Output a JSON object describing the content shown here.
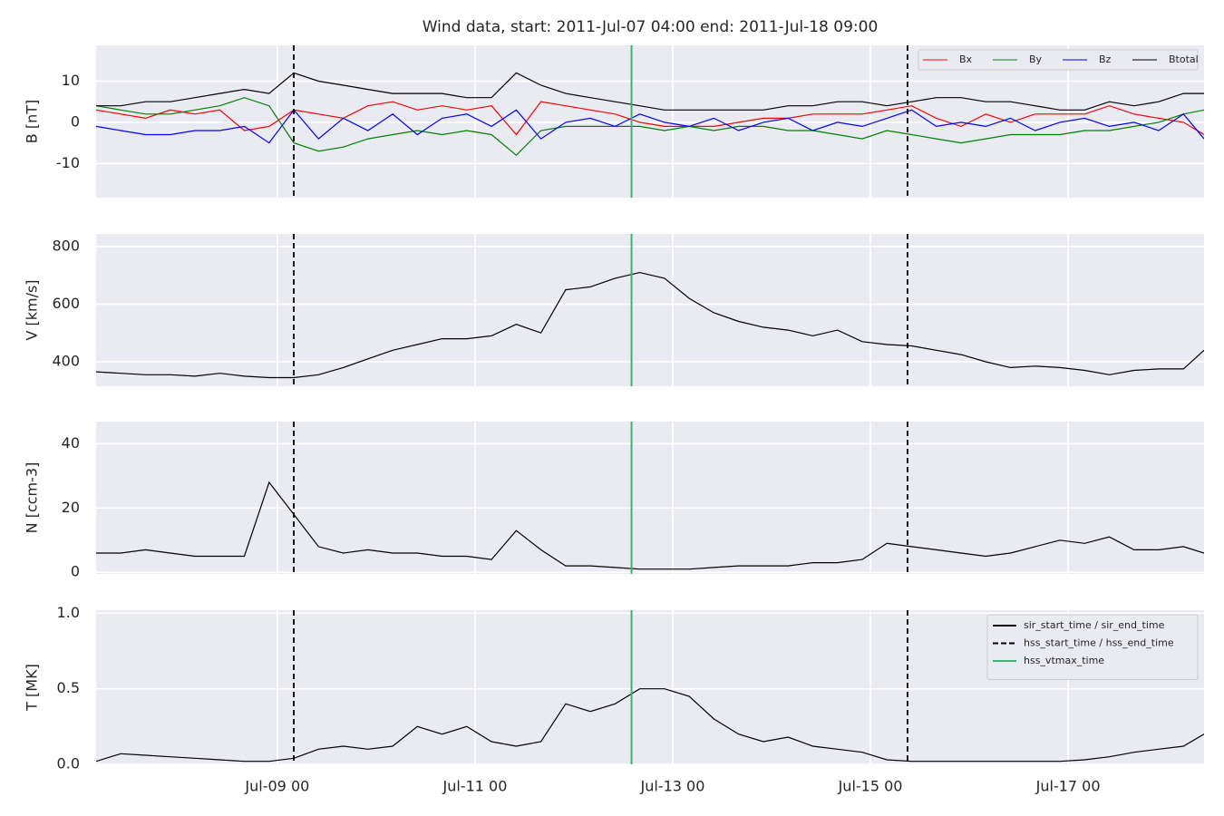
{
  "chart_data": [
    {
      "type": "line",
      "title": "Wind data, start: 2011-Jul-07 04:00  end: 2011-Jul-18 09:00",
      "y_label": "B [nT]",
      "x": [
        "Jul-07 04",
        "Jul-07 10",
        "Jul-07 16",
        "Jul-07 22",
        "Jul-08 04",
        "Jul-08 10",
        "Jul-08 16",
        "Jul-08 22",
        "Jul-09 04",
        "Jul-09 10",
        "Jul-09 16",
        "Jul-09 22",
        "Jul-10 04",
        "Jul-10 10",
        "Jul-10 16",
        "Jul-10 22",
        "Jul-11 04",
        "Jul-11 10",
        "Jul-11 16",
        "Jul-11 22",
        "Jul-12 04",
        "Jul-12 10",
        "Jul-12 16",
        "Jul-12 22",
        "Jul-13 04",
        "Jul-13 10",
        "Jul-13 16",
        "Jul-13 22",
        "Jul-14 04",
        "Jul-14 10",
        "Jul-14 16",
        "Jul-14 22",
        "Jul-15 04",
        "Jul-15 10",
        "Jul-15 16",
        "Jul-15 22",
        "Jul-16 04",
        "Jul-16 10",
        "Jul-16 16",
        "Jul-16 22",
        "Jul-17 04",
        "Jul-17 10",
        "Jul-17 16",
        "Jul-17 22",
        "Jul-18 04",
        "Jul-18 09"
      ],
      "series": [
        {
          "name": "Bx",
          "color": "#ff0000",
          "values": [
            3,
            2,
            1,
            3,
            2,
            3,
            -2,
            -1,
            3,
            2,
            1,
            4,
            5,
            3,
            4,
            3,
            4,
            -3,
            5,
            4,
            3,
            2,
            0,
            -1,
            -1,
            -1,
            0,
            1,
            1,
            2,
            2,
            2,
            3,
            4,
            1,
            -1,
            2,
            0,
            2,
            2,
            2,
            4,
            2,
            1,
            0,
            -3
          ]
        },
        {
          "name": "By",
          "color": "#008000",
          "values": [
            4,
            3,
            2,
            2,
            3,
            4,
            6,
            4,
            -5,
            -7,
            -6,
            -4,
            -3,
            -2,
            -3,
            -2,
            -3,
            -8,
            -2,
            -1,
            -1,
            -1,
            -1,
            -2,
            -1,
            -2,
            -1,
            -1,
            -2,
            -2,
            -3,
            -4,
            -2,
            -3,
            -4,
            -5,
            -4,
            -3,
            -3,
            -3,
            -2,
            -2,
            -1,
            0,
            2,
            3
          ]
        },
        {
          "name": "Bz",
          "color": "#0000ff",
          "values": [
            -1,
            -2,
            -3,
            -3,
            -2,
            -2,
            -1,
            -5,
            3,
            -4,
            1,
            -2,
            2,
            -3,
            1,
            2,
            -1,
            3,
            -4,
            0,
            1,
            -1,
            2,
            0,
            -1,
            1,
            -2,
            0,
            1,
            -2,
            0,
            -1,
            1,
            3,
            -1,
            0,
            -1,
            1,
            -2,
            0,
            1,
            -1,
            0,
            -2,
            2,
            -4
          ]
        },
        {
          "name": "Btotal",
          "color": "#000000",
          "values": [
            4,
            4,
            5,
            5,
            6,
            7,
            8,
            7,
            12,
            10,
            9,
            8,
            7,
            7,
            7,
            6,
            6,
            12,
            9,
            7,
            6,
            5,
            4,
            3,
            3,
            3,
            3,
            3,
            4,
            4,
            5,
            5,
            4,
            5,
            6,
            6,
            5,
            5,
            4,
            3,
            3,
            5,
            4,
            5,
            7,
            7
          ]
        }
      ],
      "xlim": [
        "Jul-07 04",
        "Jul-18 09"
      ],
      "xticks": [
        "Jul-09 00",
        "Jul-11 00",
        "Jul-13 00",
        "Jul-15 00",
        "Jul-17 00"
      ],
      "ylim": [
        -18.3,
        18.7
      ],
      "yticks": [
        -10,
        0,
        10
      ],
      "grid": true,
      "legend": "upper right"
    },
    {
      "type": "line",
      "y_label": "V [km/s]",
      "x": [
        "Jul-07 04",
        "Jul-07 10",
        "Jul-07 16",
        "Jul-07 22",
        "Jul-08 04",
        "Jul-08 10",
        "Jul-08 16",
        "Jul-08 22",
        "Jul-09 04",
        "Jul-09 10",
        "Jul-09 16",
        "Jul-09 22",
        "Jul-10 04",
        "Jul-10 10",
        "Jul-10 16",
        "Jul-10 22",
        "Jul-11 04",
        "Jul-11 10",
        "Jul-11 16",
        "Jul-11 22",
        "Jul-12 04",
        "Jul-12 10",
        "Jul-12 16",
        "Jul-12 22",
        "Jul-13 04",
        "Jul-13 10",
        "Jul-13 16",
        "Jul-13 22",
        "Jul-14 04",
        "Jul-14 10",
        "Jul-14 16",
        "Jul-14 22",
        "Jul-15 04",
        "Jul-15 10",
        "Jul-15 16",
        "Jul-15 22",
        "Jul-16 04",
        "Jul-16 10",
        "Jul-16 16",
        "Jul-16 22",
        "Jul-17 04",
        "Jul-17 10",
        "Jul-17 16",
        "Jul-17 22",
        "Jul-18 04",
        "Jul-18 09"
      ],
      "values": [
        365,
        360,
        355,
        355,
        350,
        360,
        350,
        345,
        345,
        355,
        380,
        410,
        440,
        460,
        480,
        480,
        490,
        530,
        500,
        650,
        660,
        690,
        710,
        690,
        620,
        570,
        540,
        520,
        510,
        490,
        510,
        470,
        460,
        455,
        440,
        425,
        400,
        380,
        385,
        380,
        370,
        355,
        370,
        375,
        375,
        440
      ],
      "color": "#000000",
      "xlim": [
        "Jul-07 04",
        "Jul-18 09"
      ],
      "xticks": [
        "Jul-09 00",
        "Jul-11 00",
        "Jul-13 00",
        "Jul-15 00",
        "Jul-17 00"
      ],
      "ylim": [
        315,
        844
      ],
      "yticks": [
        400,
        600,
        800
      ],
      "grid": true
    },
    {
      "type": "line",
      "y_label": "N [ccm-3]",
      "x": [
        "Jul-07 04",
        "Jul-07 10",
        "Jul-07 16",
        "Jul-07 22",
        "Jul-08 04",
        "Jul-08 10",
        "Jul-08 16",
        "Jul-08 22",
        "Jul-09 04",
        "Jul-09 10",
        "Jul-09 16",
        "Jul-09 22",
        "Jul-10 04",
        "Jul-10 10",
        "Jul-10 16",
        "Jul-10 22",
        "Jul-11 04",
        "Jul-11 10",
        "Jul-11 16",
        "Jul-11 22",
        "Jul-12 04",
        "Jul-12 10",
        "Jul-12 16",
        "Jul-12 22",
        "Jul-13 04",
        "Jul-13 10",
        "Jul-13 16",
        "Jul-13 22",
        "Jul-14 04",
        "Jul-14 10",
        "Jul-14 16",
        "Jul-14 22",
        "Jul-15 04",
        "Jul-15 10",
        "Jul-15 16",
        "Jul-15 22",
        "Jul-16 04",
        "Jul-16 10",
        "Jul-16 16",
        "Jul-16 22",
        "Jul-17 04",
        "Jul-17 10",
        "Jul-17 16",
        "Jul-17 22",
        "Jul-18 04",
        "Jul-18 09"
      ],
      "values": [
        6,
        6,
        7,
        6,
        5,
        5,
        5,
        28,
        18,
        8,
        6,
        7,
        6,
        6,
        5,
        5,
        4,
        13,
        7,
        2,
        2,
        1.5,
        1,
        1,
        1,
        1.5,
        2,
        2,
        2,
        3,
        3,
        4,
        9,
        8,
        7,
        6,
        5,
        6,
        8,
        10,
        9,
        11,
        7,
        7,
        8,
        6
      ],
      "color": "#000000",
      "xlim": [
        "Jul-07 04",
        "Jul-18 09"
      ],
      "xticks": [
        "Jul-09 00",
        "Jul-11 00",
        "Jul-13 00",
        "Jul-15 00",
        "Jul-17 00"
      ],
      "ylim": [
        -0.5,
        46.9
      ],
      "yticks": [
        0,
        20,
        40
      ],
      "grid": true
    },
    {
      "type": "line",
      "y_label": "T [MK]",
      "x": [
        "Jul-07 04",
        "Jul-07 10",
        "Jul-07 16",
        "Jul-07 22",
        "Jul-08 04",
        "Jul-08 10",
        "Jul-08 16",
        "Jul-08 22",
        "Jul-09 04",
        "Jul-09 10",
        "Jul-09 16",
        "Jul-09 22",
        "Jul-10 04",
        "Jul-10 10",
        "Jul-10 16",
        "Jul-10 22",
        "Jul-11 04",
        "Jul-11 10",
        "Jul-11 16",
        "Jul-11 22",
        "Jul-12 04",
        "Jul-12 10",
        "Jul-12 16",
        "Jul-12 22",
        "Jul-13 04",
        "Jul-13 10",
        "Jul-13 16",
        "Jul-13 22",
        "Jul-14 04",
        "Jul-14 10",
        "Jul-14 16",
        "Jul-14 22",
        "Jul-15 04",
        "Jul-15 10",
        "Jul-15 16",
        "Jul-15 22",
        "Jul-16 04",
        "Jul-16 10",
        "Jul-16 16",
        "Jul-16 22",
        "Jul-17 04",
        "Jul-17 10",
        "Jul-17 16",
        "Jul-17 22",
        "Jul-18 04",
        "Jul-18 09"
      ],
      "values": [
        0.02,
        0.07,
        0.06,
        0.05,
        0.04,
        0.03,
        0.02,
        0.02,
        0.04,
        0.1,
        0.12,
        0.1,
        0.12,
        0.25,
        0.2,
        0.25,
        0.15,
        0.12,
        0.15,
        0.4,
        0.35,
        0.4,
        0.5,
        0.5,
        0.45,
        0.3,
        0.2,
        0.15,
        0.18,
        0.12,
        0.1,
        0.08,
        0.03,
        0.02,
        0.02,
        0.02,
        0.02,
        0.02,
        0.02,
        0.02,
        0.03,
        0.05,
        0.08,
        0.1,
        0.12,
        0.2
      ],
      "color": "#000000",
      "xlim": [
        "Jul-07 04",
        "Jul-18 09"
      ],
      "xticks": [
        "Jul-09 00",
        "Jul-11 00",
        "Jul-13 00",
        "Jul-15 00",
        "Jul-17 00"
      ],
      "ylim": [
        0,
        1.02
      ],
      "yticks": [
        {
          "value": 0,
          "label": "0.0"
        },
        0.5,
        {
          "value": 1,
          "label": "1.0"
        }
      ],
      "grid": true,
      "legend": "upper right",
      "markers": [
        {
          "name": "sir_start_time / sir_end_time",
          "style": "solid",
          "color": "#000000",
          "x": []
        },
        {
          "name": "hss_start_time / hss_end_time",
          "style": "dashed",
          "color": "#000000",
          "x": [
            "Jul-09 04",
            "Jul-15 09"
          ]
        },
        {
          "name": "hss_vtmax_time",
          "style": "solid",
          "color": "#3cb371",
          "x": [
            "Jul-12 14"
          ]
        }
      ]
    }
  ]
}
